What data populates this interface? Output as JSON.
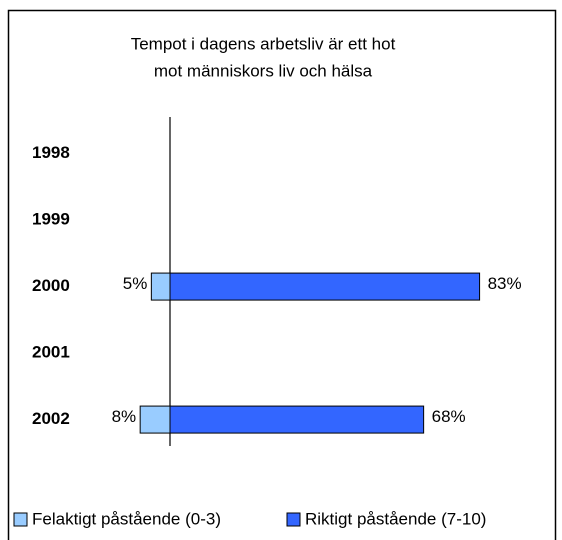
{
  "chart_data": {
    "type": "diverging-bar",
    "title": [
      "Tempot i dagens arbetsliv är ett hot",
      "mot människors liv och hälsa"
    ],
    "categories": [
      "1998",
      "1999",
      "2000",
      "2001",
      "2002"
    ],
    "series": [
      {
        "name": "Felaktigt påstående (0-3)",
        "color": "#99ccff",
        "direction": "left",
        "values": [
          null,
          null,
          5,
          null,
          8
        ],
        "value_labels": [
          null,
          null,
          "5%",
          null,
          "8%"
        ]
      },
      {
        "name": "Riktigt påstående (7-10)",
        "color": "#3366ff",
        "direction": "right",
        "values": [
          null,
          null,
          83,
          null,
          68
        ],
        "value_labels": [
          null,
          null,
          "83%",
          null,
          "68%"
        ]
      }
    ],
    "legend": "bottom"
  }
}
